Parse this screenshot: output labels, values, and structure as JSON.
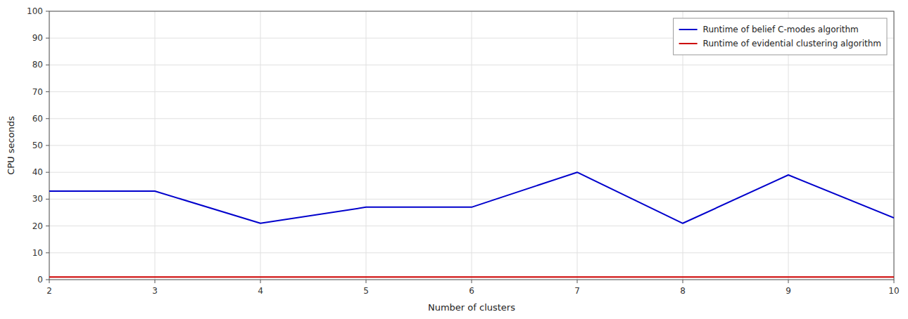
{
  "chart_data": {
    "type": "line",
    "xlabel": "Number of clusters",
    "ylabel": "CPU seconds",
    "x": [
      2,
      3,
      4,
      5,
      6,
      7,
      8,
      9,
      10
    ],
    "series": [
      {
        "name": "Runtime of belief C-modes algorithm",
        "color": "#0000cc",
        "values": [
          33,
          33,
          21,
          27,
          27,
          40,
          21,
          39,
          23
        ]
      },
      {
        "name": "Runtime of evidential clustering algorithm",
        "color": "#cc0000",
        "values": [
          1,
          1,
          1,
          1,
          1,
          1,
          1,
          1,
          1
        ]
      }
    ],
    "xlim": [
      2,
      10
    ],
    "ylim": [
      0,
      100
    ],
    "xticks": [
      2,
      3,
      4,
      5,
      6,
      7,
      8,
      9,
      10
    ],
    "yticks": [
      0,
      10,
      20,
      30,
      40,
      50,
      60,
      70,
      80,
      90,
      100
    ],
    "grid": true,
    "legend": "upper right"
  }
}
